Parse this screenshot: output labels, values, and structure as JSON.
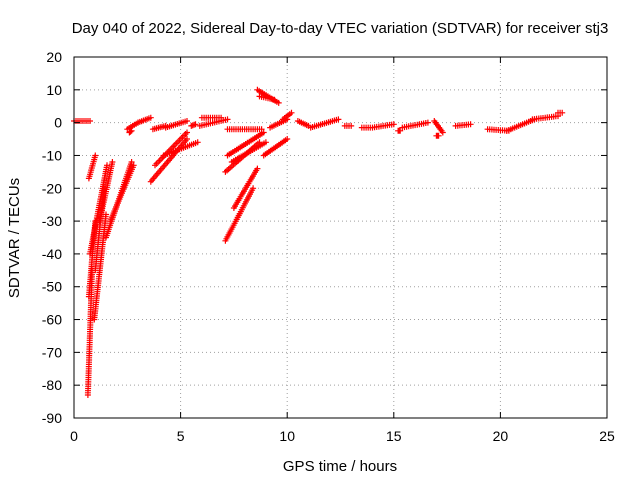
{
  "chart_data": {
    "type": "scatter",
    "title": "Day 040 of 2022, Sidereal Day-to-day VTEC variation (SDTVAR) for receiver stj3",
    "xlabel": "GPS time / hours",
    "ylabel": "SDTVAR / TECUs",
    "xlim": [
      0,
      25
    ],
    "ylim": [
      -90,
      20
    ],
    "xticks": [
      0,
      5,
      10,
      15,
      20,
      25
    ],
    "yticks": [
      -90,
      -80,
      -70,
      -60,
      -50,
      -40,
      -30,
      -20,
      -10,
      0,
      10,
      20
    ],
    "grid": true,
    "marker": "+",
    "color": "#ff0000",
    "segments": [
      {
        "x": [
          0.0,
          0.75
        ],
        "y": [
          0.5,
          0.5
        ]
      },
      {
        "x": [
          0.65,
          0.85
        ],
        "y": [
          -83,
          -45
        ]
      },
      {
        "x": [
          0.7,
          1.0
        ],
        "y": [
          -53,
          -30
        ]
      },
      {
        "x": [
          0.7,
          1.0
        ],
        "y": [
          -17,
          -10
        ]
      },
      {
        "x": [
          0.75,
          1.55
        ],
        "y": [
          -40,
          -13
        ]
      },
      {
        "x": [
          0.95,
          1.5
        ],
        "y": [
          -60,
          -28
        ]
      },
      {
        "x": [
          1.0,
          1.4
        ],
        "y": [
          -45,
          -20
        ]
      },
      {
        "x": [
          1.2,
          1.8
        ],
        "y": [
          -30,
          -12
        ]
      },
      {
        "x": [
          1.5,
          2.7
        ],
        "y": [
          -35,
          -12
        ]
      },
      {
        "x": [
          1.7,
          2.8
        ],
        "y": [
          -30,
          -13
        ]
      },
      {
        "x": [
          2.5,
          3.0
        ],
        "y": [
          -2,
          0
        ]
      },
      {
        "x": [
          2.6,
          2.7
        ],
        "y": [
          -3,
          -2.5
        ]
      },
      {
        "x": [
          3.0,
          3.6
        ],
        "y": [
          0,
          1.5
        ]
      },
      {
        "x": [
          3.6,
          5.3
        ],
        "y": [
          -18,
          -5
        ]
      },
      {
        "x": [
          3.8,
          5.3
        ],
        "y": [
          -13,
          -3
        ]
      },
      {
        "x": [
          4.2,
          5.8
        ],
        "y": [
          -10,
          -6
        ]
      },
      {
        "x": [
          3.7,
          4.3
        ],
        "y": [
          -2,
          -1
        ]
      },
      {
        "x": [
          4.3,
          5.3
        ],
        "y": [
          -1.5,
          0.5
        ]
      },
      {
        "x": [
          5.5,
          5.7
        ],
        "y": [
          -1,
          -0.5
        ]
      },
      {
        "x": [
          5.9,
          7.2
        ],
        "y": [
          -1,
          1
        ]
      },
      {
        "x": [
          6.0,
          6.9
        ],
        "y": [
          1.5,
          1.5
        ]
      },
      {
        "x": [
          7.1,
          8.4
        ],
        "y": [
          -36,
          -20
        ]
      },
      {
        "x": [
          7.5,
          8.6
        ],
        "y": [
          -26,
          -14
        ]
      },
      {
        "x": [
          7.1,
          8.7
        ],
        "y": [
          -15,
          -6
        ]
      },
      {
        "x": [
          7.4,
          9.0
        ],
        "y": [
          -12,
          -6
        ]
      },
      {
        "x": [
          7.2,
          8.9
        ],
        "y": [
          -10,
          -3
        ]
      },
      {
        "x": [
          7.2,
          8.8
        ],
        "y": [
          -2,
          -2
        ]
      },
      {
        "x": [
          8.9,
          10.0
        ],
        "y": [
          -10,
          -5
        ]
      },
      {
        "x": [
          8.6,
          9.6
        ],
        "y": [
          10,
          6
        ]
      },
      {
        "x": [
          8.7,
          9.4
        ],
        "y": [
          8,
          7
        ]
      },
      {
        "x": [
          9.2,
          10.0
        ],
        "y": [
          -1.5,
          1
        ]
      },
      {
        "x": [
          9.8,
          10.2
        ],
        "y": [
          1,
          3
        ]
      },
      {
        "x": [
          10.5,
          11.0
        ],
        "y": [
          0.5,
          -1
        ]
      },
      {
        "x": [
          11.1,
          12.4
        ],
        "y": [
          -1.5,
          1
        ]
      },
      {
        "x": [
          12.7,
          13.0
        ],
        "y": [
          -1,
          -1
        ]
      },
      {
        "x": [
          13.5,
          13.9
        ],
        "y": [
          -1.5,
          -1.5
        ]
      },
      {
        "x": [
          14.0,
          15.0
        ],
        "y": [
          -1.5,
          -0.5
        ]
      },
      {
        "x": [
          15.2,
          15.3
        ],
        "y": [
          -2.5,
          -2.5
        ]
      },
      {
        "x": [
          15.4,
          16.6
        ],
        "y": [
          -1.5,
          0
        ]
      },
      {
        "x": [
          16.9,
          17.3
        ],
        "y": [
          0.5,
          -3
        ]
      },
      {
        "x": [
          17.0,
          17.1
        ],
        "y": [
          -4,
          -4
        ]
      },
      {
        "x": [
          17.9,
          18.6
        ],
        "y": [
          -1,
          -0.5
        ]
      },
      {
        "x": [
          19.4,
          20.4
        ],
        "y": [
          -2,
          -2.5
        ]
      },
      {
        "x": [
          20.3,
          21.6
        ],
        "y": [
          -2.5,
          1
        ]
      },
      {
        "x": [
          21.5,
          22.7
        ],
        "y": [
          1,
          2
        ]
      },
      {
        "x": [
          22.7,
          22.9
        ],
        "y": [
          3,
          3
        ]
      }
    ]
  }
}
